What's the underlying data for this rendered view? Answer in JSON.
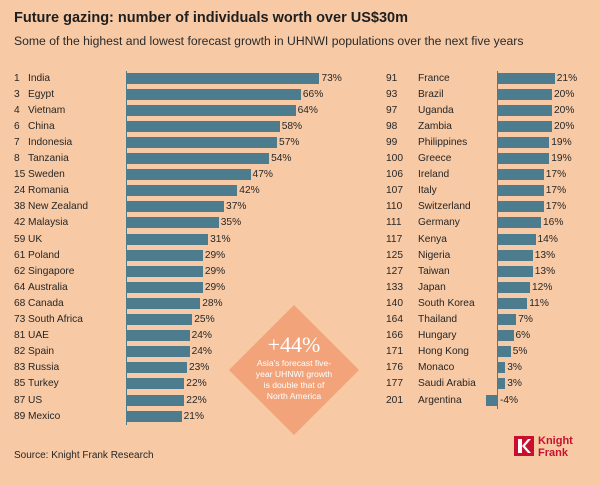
{
  "header": {
    "title": "Future gazing: number of individuals worth over US$30m",
    "subtitle": "Some of the highest and lowest forecast growth in UHNWI populations over the next five years"
  },
  "callout": {
    "value": "+44%",
    "text": "Asia's forecast five-year UHNWI growth is double that of North America"
  },
  "footer": {
    "source": "Source: Knight Frank Research",
    "brand_line1": "Knight",
    "brand_line2": "Frank"
  },
  "colors": {
    "background": "#f7c9a5",
    "bar": "#4d7c8e",
    "callout": "#f2a37a",
    "brand": "#c8102e"
  },
  "chart_data": [
    {
      "type": "bar",
      "orientation": "horizontal",
      "value_suffix": "%",
      "rows": [
        {
          "rank": "1",
          "country": "India",
          "value": 73
        },
        {
          "rank": "3",
          "country": "Egypt",
          "value": 66
        },
        {
          "rank": "4",
          "country": "Vietnam",
          "value": 64
        },
        {
          "rank": "6",
          "country": "China",
          "value": 58
        },
        {
          "rank": "7",
          "country": "Indonesia",
          "value": 57
        },
        {
          "rank": "8",
          "country": "Tanzania",
          "value": 54
        },
        {
          "rank": "15",
          "country": "Sweden",
          "value": 47
        },
        {
          "rank": "24",
          "country": "Romania",
          "value": 42
        },
        {
          "rank": "38",
          "country": "New Zealand",
          "value": 37
        },
        {
          "rank": "42",
          "country": "Malaysia",
          "value": 35
        },
        {
          "rank": "59",
          "country": "UK",
          "value": 31
        },
        {
          "rank": "61",
          "country": "Poland",
          "value": 29
        },
        {
          "rank": "62",
          "country": "Singapore",
          "value": 29
        },
        {
          "rank": "64",
          "country": "Australia",
          "value": 29
        },
        {
          "rank": "68",
          "country": "Canada",
          "value": 28
        },
        {
          "rank": "73",
          "country": "South Africa",
          "value": 25
        },
        {
          "rank": "81",
          "country": "UAE",
          "value": 24
        },
        {
          "rank": "82",
          "country": "Spain",
          "value": 24
        },
        {
          "rank": "83",
          "country": "Russia",
          "value": 23
        },
        {
          "rank": "85",
          "country": "Turkey",
          "value": 22
        },
        {
          "rank": "87",
          "country": "US",
          "value": 22
        },
        {
          "rank": "89",
          "country": "Mexico",
          "value": 21
        }
      ]
    },
    {
      "type": "bar",
      "orientation": "horizontal",
      "value_suffix": "%",
      "rows": [
        {
          "rank": "91",
          "country": "France",
          "value": 21
        },
        {
          "rank": "93",
          "country": "Brazil",
          "value": 20
        },
        {
          "rank": "97",
          "country": "Uganda",
          "value": 20
        },
        {
          "rank": "98",
          "country": "Zambia",
          "value": 20
        },
        {
          "rank": "99",
          "country": "Philippines",
          "value": 19
        },
        {
          "rank": "100",
          "country": "Greece",
          "value": 19
        },
        {
          "rank": "106",
          "country": "Ireland",
          "value": 17
        },
        {
          "rank": "107",
          "country": "Italy",
          "value": 17
        },
        {
          "rank": "110",
          "country": "Switzerland",
          "value": 17
        },
        {
          "rank": "111",
          "country": "Germany",
          "value": 16
        },
        {
          "rank": "117",
          "country": "Kenya",
          "value": 14
        },
        {
          "rank": "125",
          "country": "Nigeria",
          "value": 13
        },
        {
          "rank": "127",
          "country": "Taiwan",
          "value": 13
        },
        {
          "rank": "133",
          "country": "Japan",
          "value": 12
        },
        {
          "rank": "140",
          "country": "South Korea",
          "value": 11
        },
        {
          "rank": "164",
          "country": "Thailand",
          "value": 7
        },
        {
          "rank": "166",
          "country": "Hungary",
          "value": 6
        },
        {
          "rank": "171",
          "country": "Hong Kong",
          "value": 5
        },
        {
          "rank": "176",
          "country": "Monaco",
          "value": 3
        },
        {
          "rank": "177",
          "country": "Saudi Arabia",
          "value": 3
        },
        {
          "rank": "201",
          "country": "Argentina",
          "value": -4
        }
      ]
    }
  ]
}
